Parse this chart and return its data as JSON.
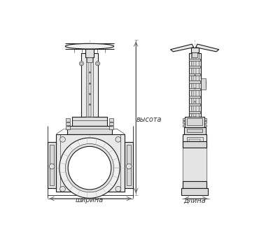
{
  "bg_color": "#ffffff",
  "line_color": "#1a1a1a",
  "dim_color": "#333333",
  "label_width": "ширина",
  "label_height": "высота",
  "label_length": "длина",
  "fig_width": 4.0,
  "fig_height": 3.46,
  "dpi": 100
}
